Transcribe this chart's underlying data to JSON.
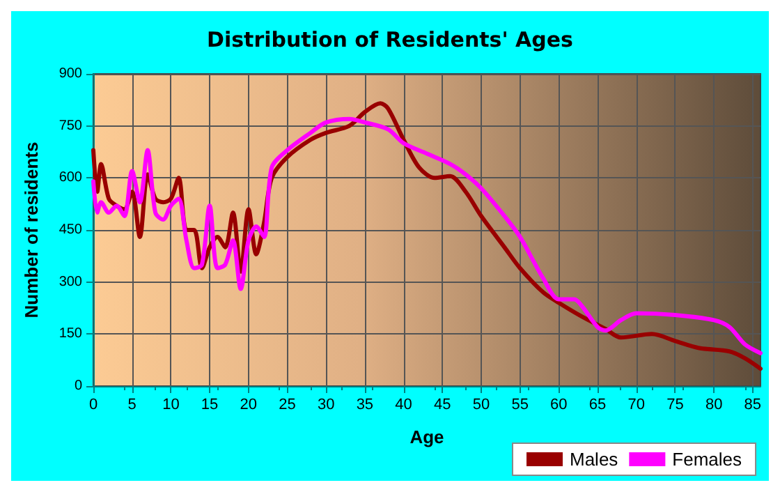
{
  "chart_data": {
    "type": "line",
    "title": "Distribution of Residents' Ages",
    "xlabel": "Age",
    "ylabel": "Number of residents",
    "xlim": [
      0,
      86
    ],
    "xticks": [
      0,
      5,
      10,
      15,
      20,
      25,
      30,
      35,
      40,
      45,
      50,
      55,
      60,
      65,
      70,
      75,
      80,
      85
    ],
    "ylim": [
      0,
      900
    ],
    "yticks": [
      0,
      150,
      300,
      450,
      600,
      750,
      900
    ],
    "grid": true,
    "legend": "bottom",
    "marker": "none",
    "line_style": "solid",
    "series": [
      {
        "name": "Males",
        "color": "#990000",
        "x": [
          0,
          0.5,
          1,
          2,
          3,
          4,
          5,
          6,
          7,
          8,
          9,
          10,
          11,
          12,
          13,
          14,
          15,
          16,
          17,
          18,
          19,
          20,
          21,
          22,
          23,
          25,
          28,
          30,
          33,
          35,
          37,
          38,
          40,
          42,
          44,
          46,
          48,
          50,
          53,
          55,
          58,
          60,
          63,
          66,
          68,
          72,
          75,
          78,
          82,
          84,
          86
        ],
        "values": [
          680,
          560,
          640,
          540,
          520,
          510,
          560,
          430,
          610,
          540,
          530,
          540,
          600,
          450,
          450,
          340,
          400,
          430,
          400,
          500,
          330,
          510,
          380,
          470,
          600,
          660,
          710,
          730,
          750,
          790,
          815,
          800,
          710,
          630,
          600,
          605,
          560,
          490,
          400,
          340,
          270,
          240,
          200,
          165,
          140,
          150,
          130,
          110,
          100,
          80,
          50
        ]
      },
      {
        "name": "Females",
        "color": "#ff00ff",
        "x": [
          0,
          0.5,
          1,
          2,
          3,
          4,
          5,
          6,
          7,
          8,
          9,
          10,
          11,
          12,
          13,
          14,
          15,
          16,
          17,
          18,
          19,
          20,
          21,
          22,
          23,
          25,
          28,
          30,
          33,
          35,
          38,
          40,
          43,
          46,
          48,
          50,
          53,
          55,
          58,
          60,
          62,
          63,
          65,
          66,
          68,
          70,
          75,
          80,
          82,
          84,
          86
        ],
        "values": [
          590,
          500,
          530,
          500,
          520,
          490,
          620,
          530,
          680,
          500,
          480,
          520,
          540,
          420,
          340,
          350,
          520,
          340,
          350,
          420,
          280,
          420,
          460,
          430,
          630,
          680,
          730,
          760,
          770,
          760,
          740,
          700,
          670,
          640,
          610,
          570,
          490,
          430,
          310,
          250,
          250,
          230,
          170,
          160,
          190,
          210,
          205,
          190,
          170,
          120,
          95
        ]
      }
    ]
  }
}
